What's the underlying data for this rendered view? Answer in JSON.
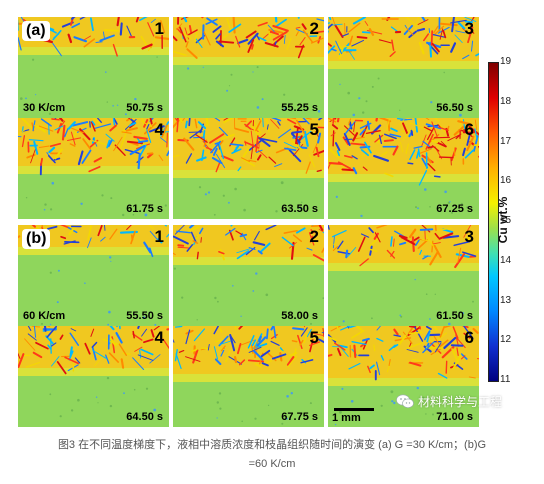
{
  "figure": {
    "group_a": {
      "label": "(a)",
      "gradient": "30 K/cm",
      "panels": [
        {
          "num": "1",
          "time": "50.75 s"
        },
        {
          "num": "2",
          "time": "55.25 s"
        },
        {
          "num": "3",
          "time": "56.50 s"
        },
        {
          "num": "4",
          "time": "61.75 s"
        },
        {
          "num": "5",
          "time": "63.50 s"
        },
        {
          "num": "6",
          "time": "67.25 s"
        }
      ]
    },
    "group_b": {
      "label": "(b)",
      "gradient": "60 K/cm",
      "panels": [
        {
          "num": "1",
          "time": "55.50 s"
        },
        {
          "num": "2",
          "time": "58.00 s"
        },
        {
          "num": "3",
          "time": "61.50 s"
        },
        {
          "num": "4",
          "time": "64.50 s"
        },
        {
          "num": "5",
          "time": "67.75 s"
        },
        {
          "num": "6",
          "time": "71.00 s"
        }
      ]
    },
    "scale_bar": "1 mm",
    "colorbar": {
      "title": "Cu wt.%",
      "ticks": [
        "19",
        "18",
        "17",
        "16",
        "15",
        "14",
        "13",
        "12",
        "11"
      ],
      "min": 11,
      "max": 19
    },
    "watermark": "材料科学与工程"
  },
  "caption": {
    "line1": "图3 在不同温度梯度下，液相中溶质浓度和枝晶组织随时间的演变 (a) G =30 K/cm；(b)G",
    "line2": "=60 K/cm"
  }
}
